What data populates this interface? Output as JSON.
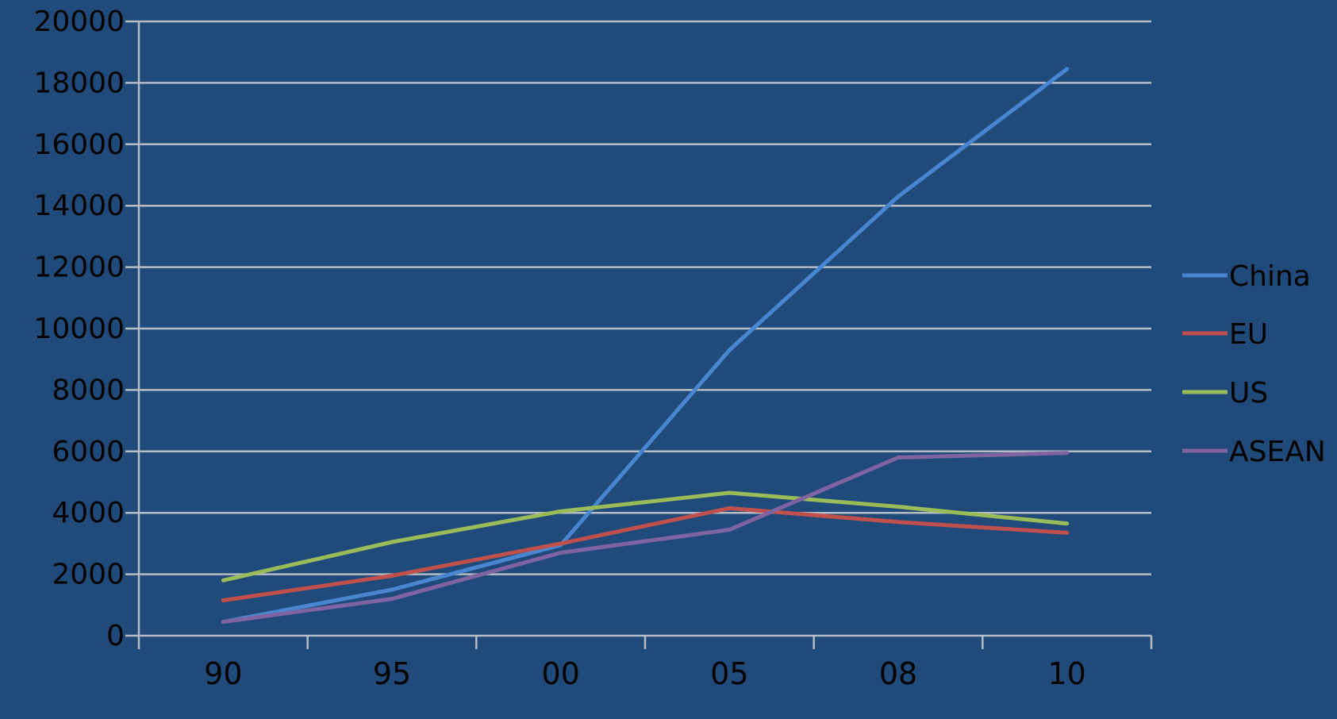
{
  "chart_data": {
    "type": "line",
    "categories": [
      "90",
      "95",
      "00",
      "05",
      "08",
      "10"
    ],
    "ylim": [
      0,
      20000
    ],
    "yticks": [
      0,
      2000,
      4000,
      6000,
      8000,
      10000,
      12000,
      14000,
      16000,
      18000,
      20000
    ],
    "grid": true,
    "legend_position": "right",
    "background": "#204a7a",
    "gridline_color": "#b7bcc4",
    "series": [
      {
        "name": "China",
        "color": "#4a86d0",
        "values": [
          450,
          1500,
          2950,
          9300,
          14300,
          18450
        ]
      },
      {
        "name": "EU",
        "color": "#c0504d",
        "values": [
          1150,
          1950,
          3000,
          4150,
          3700,
          3350
        ]
      },
      {
        "name": "US",
        "color": "#9bbb59",
        "values": [
          1800,
          3050,
          4050,
          4650,
          4200,
          3650
        ]
      },
      {
        "name": "ASEAN",
        "color": "#8064a2",
        "values": [
          450,
          1200,
          2700,
          3450,
          5800,
          5950
        ]
      }
    ]
  }
}
